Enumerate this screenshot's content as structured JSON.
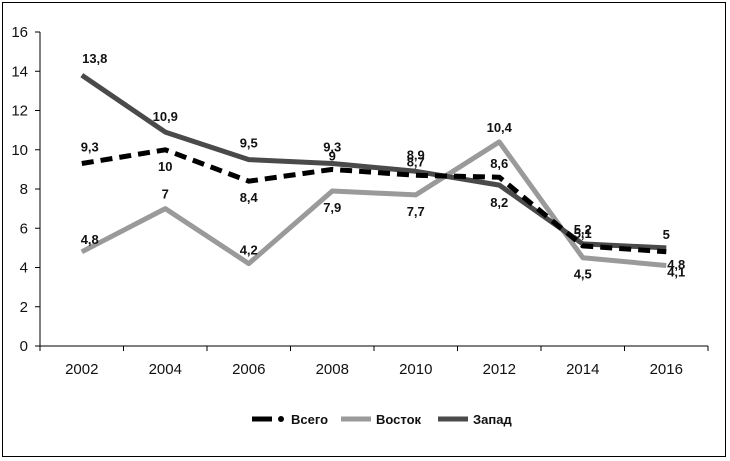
{
  "chart_data": {
    "type": "line",
    "categories": [
      "2002",
      "2004",
      "2006",
      "2008",
      "2010",
      "2012",
      "2014",
      "2016"
    ],
    "ylim": [
      0,
      16
    ],
    "yticks": [
      "0",
      "2",
      "4",
      "6",
      "8",
      "10",
      "12",
      "14",
      "16"
    ],
    "grid": false,
    "legend_position": "bottom",
    "series": [
      {
        "name": "Всего",
        "values": [
          9.3,
          10,
          8.4,
          9,
          8.7,
          8.6,
          5.1,
          4.8
        ],
        "labels": [
          "9,3",
          "10",
          "8,4",
          "9",
          "8,7",
          "8,6",
          "5,1",
          "4,8"
        ],
        "color": "#000000",
        "style": "dashed"
      },
      {
        "name": "Восток",
        "values": [
          4.8,
          7,
          4.2,
          7.9,
          7.7,
          10.4,
          4.5,
          4.1
        ],
        "labels": [
          "4,8",
          "7",
          "4,2",
          "7,9",
          "7,7",
          "10,4",
          "4,5",
          "4,1"
        ],
        "color": "#9a9a9a",
        "style": "solid"
      },
      {
        "name": "Запад",
        "values": [
          13.8,
          10.9,
          9.5,
          9.3,
          8.9,
          8.2,
          5.2,
          5
        ],
        "labels": [
          "13,8",
          "10,9",
          "9,5",
          "9,3",
          "8,9",
          "8,2",
          "5,2",
          "5"
        ],
        "color": "#4a4a4a",
        "style": "solid"
      }
    ]
  }
}
